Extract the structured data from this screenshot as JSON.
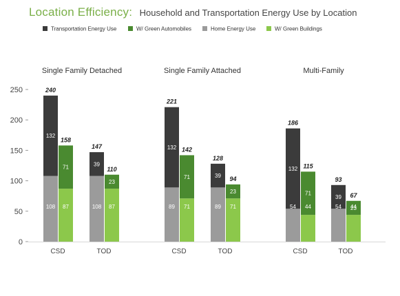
{
  "title": "Location Efficiency:",
  "subtitle": "Household and Transportation Energy Use by Location",
  "colors": {
    "transport": "#3b3b3b",
    "green_auto": "#4a8a30",
    "home": "#9b9b9b",
    "green_building": "#8cc84b",
    "title": "#7aaf48"
  },
  "legend": [
    {
      "label": "Transportation Energy Use",
      "color": "#3b3b3b"
    },
    {
      "label": "W/ Green Automobiles",
      "color": "#4a8a30"
    },
    {
      "label": "Home Energy Use",
      "color": "#9b9b9b"
    },
    {
      "label": "W/ Green Buildings",
      "color": "#8cc84b"
    }
  ],
  "chart_data": {
    "type": "bar",
    "stacked": true,
    "ylim": [
      0,
      250
    ],
    "yticks": [
      0,
      50,
      100,
      150,
      200,
      250
    ],
    "grid": false,
    "legend_position": "top",
    "groups": [
      {
        "name": "Single Family Detached",
        "categories": [
          {
            "label": "CSD",
            "standard": {
              "home": 108,
              "transport": 132,
              "total": 240
            },
            "green": {
              "home": 87,
              "transport": 71,
              "total": 158
            }
          },
          {
            "label": "TOD",
            "standard": {
              "home": 108,
              "transport": 39,
              "total": 147
            },
            "green": {
              "home": 87,
              "transport": 23,
              "total": 110
            }
          }
        ]
      },
      {
        "name": "Single Family Attached",
        "categories": [
          {
            "label": "CSD",
            "standard": {
              "home": 89,
              "transport": 132,
              "total": 221
            },
            "green": {
              "home": 71,
              "transport": 71,
              "total": 142
            }
          },
          {
            "label": "TOD",
            "standard": {
              "home": 89,
              "transport": 39,
              "total": 128
            },
            "green": {
              "home": 71,
              "transport": 23,
              "total": 94
            }
          }
        ]
      },
      {
        "name": "Multi-Family",
        "categories": [
          {
            "label": "CSD",
            "standard": {
              "home": 54,
              "transport": 132,
              "total": 186
            },
            "green": {
              "home": 44,
              "transport": 71,
              "total": 115
            }
          },
          {
            "label": "TOD",
            "standard": {
              "home": 54,
              "transport": 39,
              "total": 93
            },
            "green": {
              "home": 44,
              "transport": 23,
              "total": 67
            }
          }
        ]
      }
    ]
  }
}
